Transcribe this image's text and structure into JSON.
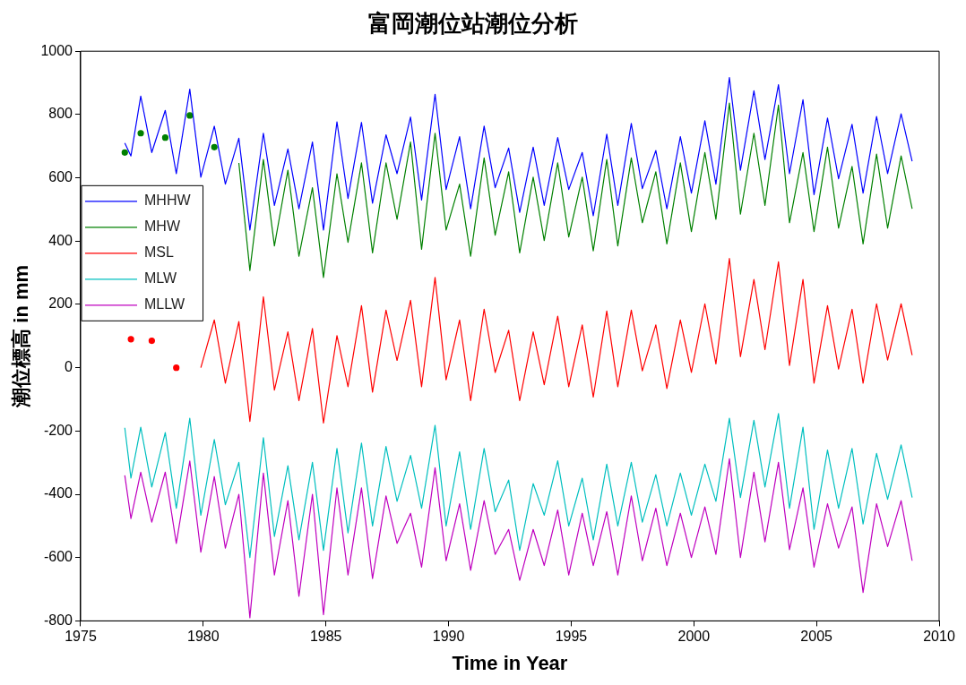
{
  "chart_data": {
    "type": "line",
    "title": "富岡潮位站潮位分析",
    "xlabel": "Time in Year",
    "ylabel": "潮位標高 in mm",
    "x": [
      1976.8,
      1977.05,
      1977.45,
      1977.9,
      1978.45,
      1978.9,
      1979.45,
      1979.9,
      1980.45,
      1980.9,
      1981.45,
      1981.9,
      1982.45,
      1982.9,
      1983.45,
      1983.9,
      1984.45,
      1984.9,
      1985.45,
      1985.9,
      1986.45,
      1986.9,
      1987.45,
      1987.9,
      1988.45,
      1988.9,
      1989.45,
      1989.9,
      1990.45,
      1990.9,
      1991.45,
      1991.9,
      1992.45,
      1992.9,
      1993.45,
      1993.9,
      1994.45,
      1994.9,
      1995.45,
      1995.9,
      1996.45,
      1996.9,
      1997.45,
      1997.9,
      1998.45,
      1998.9,
      1999.45,
      1999.9,
      2000.45,
      2000.9,
      2001.45,
      2001.9,
      2002.45,
      2002.9,
      2003.45,
      2003.9,
      2004.45,
      2004.9,
      2005.45,
      2005.9,
      2006.45,
      2006.9,
      2007.45,
      2007.9,
      2008.45,
      2008.9
    ],
    "series": [
      {
        "name": "MHHW",
        "color": "#0000ff",
        "values": [
          710,
          669,
          858,
          680,
          813,
          613,
          880,
          602,
          763,
          580,
          725,
          435,
          741,
          513,
          691,
          502,
          713,
          435,
          777,
          535,
          775,
          520,
          736,
          613,
          792,
          530,
          864,
          563,
          730,
          502,
          763,
          569,
          694,
          491,
          697,
          513,
          727,
          563,
          680,
          480,
          738,
          513,
          772,
          566,
          686,
          502,
          730,
          552,
          780,
          580,
          917,
          624,
          875,
          658,
          894,
          613,
          847,
          547,
          789,
          597,
          769,
          552,
          794,
          613,
          802,
          652
        ]
      },
      {
        "name": "MHW",
        "color": "#008000",
        "values": [
          680,
          null,
          741,
          null,
          727,
          null,
          797,
          null,
          697,
          null,
          647,
          307,
          658,
          385,
          624,
          352,
          569,
          285,
          613,
          396,
          647,
          363,
          647,
          469,
          713,
          374,
          741,
          435,
          580,
          352,
          663,
          419,
          619,
          363,
          602,
          402,
          647,
          413,
          602,
          369,
          658,
          385,
          663,
          458,
          619,
          391,
          647,
          430,
          680,
          469,
          836,
          485,
          741,
          513,
          830,
          458,
          680,
          430,
          697,
          441,
          636,
          391,
          675,
          441,
          669,
          502
        ]
      },
      {
        "name": "MSL",
        "color": "#ff0000",
        "values": [
          null,
          90,
          null,
          85,
          null,
          0,
          null,
          0,
          151,
          -49,
          146,
          -170,
          224,
          -71,
          113,
          -104,
          124,
          -175,
          101,
          -60,
          196,
          -77,
          182,
          23,
          213,
          -60,
          285,
          -38,
          151,
          -104,
          185,
          -15,
          118,
          -104,
          113,
          -54,
          163,
          -60,
          135,
          -93,
          179,
          -60,
          182,
          -10,
          135,
          -66,
          151,
          -15,
          202,
          12,
          345,
          35,
          279,
          57,
          335,
          7,
          279,
          -49,
          196,
          -4,
          185,
          -49,
          202,
          24,
          202,
          40
        ]
      },
      {
        "name": "MLW",
        "color": "#00bfbf",
        "values": [
          -190,
          -349,
          -188,
          -377,
          -205,
          -444,
          -160,
          -466,
          -227,
          -433,
          -299,
          -600,
          -221,
          -533,
          -310,
          -544,
          -299,
          -577,
          -255,
          -522,
          -238,
          -500,
          -249,
          -422,
          -277,
          -444,
          -182,
          -500,
          -266,
          -511,
          -255,
          -455,
          -355,
          -577,
          -366,
          -466,
          -294,
          -500,
          -349,
          -544,
          -305,
          -500,
          -299,
          -488,
          -338,
          -500,
          -333,
          -466,
          -305,
          -422,
          -160,
          -410,
          -166,
          -377,
          -145,
          -444,
          -188,
          -511,
          -260,
          -444,
          -255,
          -494,
          -271,
          -416,
          -244,
          -410
        ]
      },
      {
        "name": "MLLW",
        "color": "#bf00bf",
        "values": [
          -340,
          -477,
          -330,
          -488,
          -330,
          -555,
          -295,
          -583,
          -344,
          -570,
          -400,
          -790,
          -333,
          -655,
          -420,
          -722,
          -400,
          -780,
          -380,
          -655,
          -380,
          -666,
          -405,
          -555,
          -460,
          -630,
          -316,
          -610,
          -430,
          -640,
          -420,
          -590,
          -511,
          -672,
          -511,
          -625,
          -450,
          -655,
          -460,
          -625,
          -455,
          -655,
          -405,
          -610,
          -444,
          -625,
          -460,
          -600,
          -440,
          -590,
          -288,
          -600,
          -330,
          -550,
          -299,
          -575,
          -380,
          -630,
          -430,
          -570,
          -440,
          -710,
          -430,
          -565,
          -420,
          -610
        ]
      }
    ],
    "xlim": [
      1975,
      2010
    ],
    "xticks": [
      1975,
      1980,
      1985,
      1990,
      1995,
      2000,
      2005,
      2010
    ],
    "ylim": [
      -800,
      1000
    ],
    "yticks": [
      -800,
      -600,
      -400,
      -200,
      0,
      200,
      400,
      600,
      800,
      1000
    ],
    "grid": false,
    "legend": "top left",
    "marker": "none",
    "line_style": "solid"
  }
}
